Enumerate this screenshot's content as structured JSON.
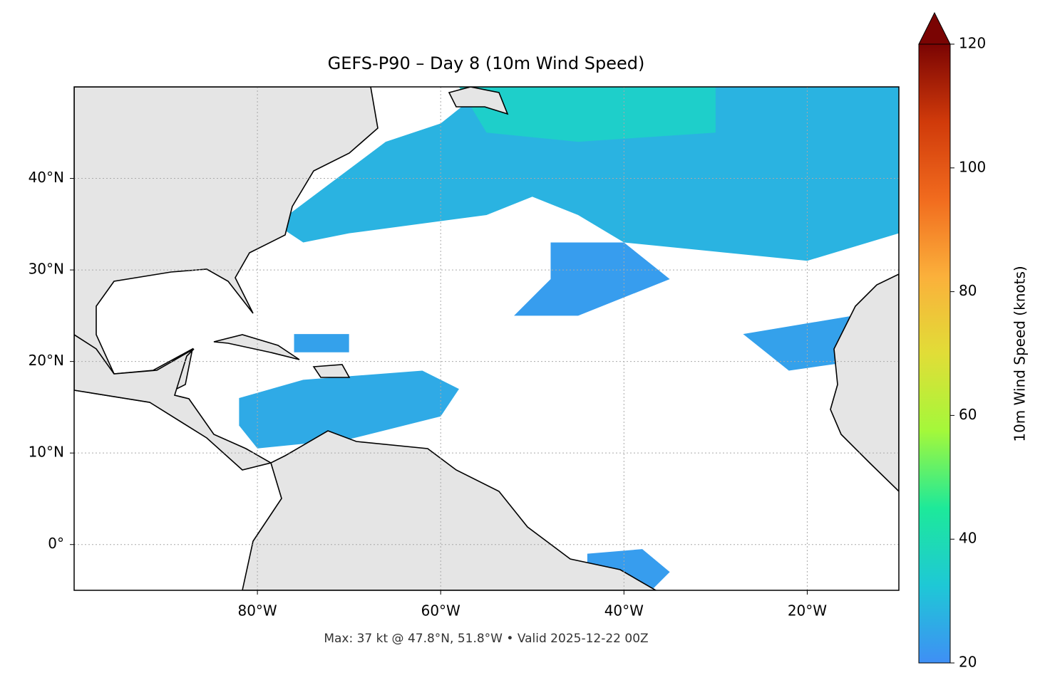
{
  "chart_data": {
    "type": "map",
    "title": "GEFS-P90 – Day 8 (10m Wind Speed)",
    "annotation": "Max: 37 kt @ 47.8°N, 51.8°W • Valid 2025-12-22 00Z",
    "xlim": [
      -100,
      -10
    ],
    "ylim": [
      -5,
      50
    ],
    "xticks": [
      {
        "value": -80,
        "label": "80°W"
      },
      {
        "value": -60,
        "label": "60°W"
      },
      {
        "value": -40,
        "label": "40°W"
      },
      {
        "value": -20,
        "label": "20°W"
      }
    ],
    "yticks": [
      {
        "value": 0,
        "label": "0°"
      },
      {
        "value": 10,
        "label": "10°N"
      },
      {
        "value": 20,
        "label": "20°N"
      },
      {
        "value": 30,
        "label": "30°N"
      },
      {
        "value": 40,
        "label": "40°N"
      }
    ],
    "grid": true,
    "colorbar_label": "10m Wind Speed (knots)",
    "clim": [
      20,
      120
    ],
    "cticks": [
      20,
      40,
      60,
      80,
      100,
      120
    ],
    "colormap": [
      "#3f8ff5",
      "#1ec8d6",
      "#1de99a",
      "#a4f83a",
      "#e1dd37",
      "#fbb03b",
      "#f16b1e",
      "#d03a0a",
      "#7a0403"
    ],
    "regions": [
      {
        "value": 28,
        "lon": [
          -78,
          -70,
          -66,
          -60,
          -55,
          -10,
          -10,
          -20,
          -30,
          -40,
          -45,
          -50,
          -55,
          -70,
          -75
        ],
        "lat": [
          35,
          41,
          44,
          46,
          50,
          50,
          34,
          31,
          32,
          33,
          36,
          38,
          36,
          34,
          33
        ]
      },
      {
        "value": 35,
        "lon": [
          -58,
          -30,
          -30,
          -45,
          -55
        ],
        "lat": [
          50,
          50,
          45,
          44,
          45
        ]
      },
      {
        "value": 26,
        "lon": [
          -82,
          -75,
          -62,
          -58,
          -60,
          -70,
          -80,
          -82
        ],
        "lat": [
          16,
          18,
          19,
          17,
          14,
          11.5,
          10.5,
          13
        ]
      },
      {
        "value": 23,
        "lon": [
          -48,
          -40,
          -35,
          -45,
          -52,
          -48
        ],
        "lat": [
          33,
          33,
          29,
          25,
          25,
          29
        ]
      },
      {
        "value": 24,
        "lon": [
          -27,
          -15,
          -15,
          -22
        ],
        "lat": [
          23,
          25,
          20,
          19
        ]
      },
      {
        "value": 23,
        "lon": [
          -44,
          -38,
          -35,
          -37,
          -44
        ],
        "lat": [
          -1,
          -0.5,
          -3,
          -5,
          -3
        ]
      },
      {
        "value": 24,
        "lon": [
          -76,
          -70,
          -70,
          -76
        ],
        "lat": [
          23,
          23,
          21,
          21
        ]
      }
    ]
  }
}
